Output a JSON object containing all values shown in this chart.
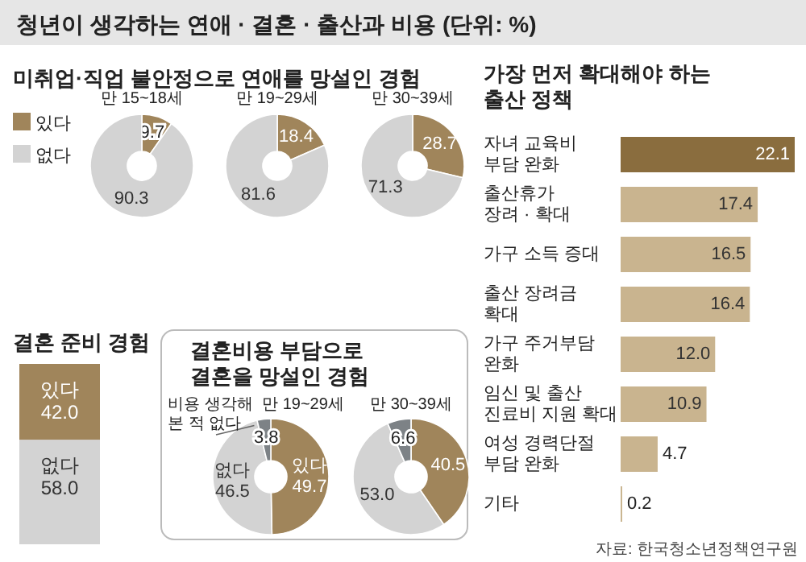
{
  "chart_data": [
    {
      "type": "other",
      "title": "청년이 생각하는 연애 · 결혼 · 출산과 비용 (단위: %)"
    },
    {
      "type": "donut",
      "title": "미취업·직업 불안정으로 연애를 망설인 경험",
      "subtitle": "만 15~18세",
      "categories": [
        "있다",
        "없다"
      ],
      "values": [
        9.7,
        90.3
      ],
      "value_labels": [
        "9.7",
        "90.3"
      ],
      "colors": [
        "#a0855b",
        "#d3d3d3"
      ],
      "legend": "left"
    },
    {
      "type": "donut",
      "subtitle": "만 19~29세",
      "categories": [
        null,
        null
      ],
      "values": [
        18.4,
        81.6
      ],
      "value_labels": [
        "18.4",
        "81.6"
      ],
      "colors": [
        "#a0855b",
        "#d3d3d3"
      ]
    },
    {
      "type": "donut",
      "subtitle": "만 30~39세",
      "categories": [
        null,
        null
      ],
      "values": [
        28.7,
        71.3
      ],
      "value_labels": [
        "28.7",
        "71.3"
      ],
      "colors": [
        "#a0855b",
        "#d3d3d3"
      ]
    },
    {
      "type": "bar",
      "title": "결혼 준비 경험",
      "categories": [
        null
      ],
      "stacked": true,
      "series": [
        {
          "name": "없다",
          "color": "#d3d3d3",
          "values": [
            58.0
          ],
          "value_labels": [
            "58.0"
          ]
        },
        {
          "name": "있다",
          "color": "#a0855b",
          "values": [
            42.0
          ],
          "value_labels": [
            "42.0"
          ]
        }
      ]
    },
    {
      "type": "donut",
      "title": "결혼비용 부담으로\n결혼을 망설인 경험",
      "subtitle": "만 19~29세",
      "categories": [
        "있다",
        "없다",
        "비용 생각해\n본 적 없다"
      ],
      "values": [
        49.7,
        46.5,
        3.8
      ],
      "value_labels": [
        "49.7",
        "46.5",
        "3.8"
      ],
      "colors": [
        "#a0855b",
        "#d3d3d3",
        "#7d8286"
      ]
    },
    {
      "type": "donut",
      "subtitle": "만 30~39세",
      "categories": [
        null,
        null,
        null
      ],
      "values": [
        40.5,
        53.0,
        6.6
      ],
      "value_labels": [
        "40.5",
        "53.0",
        "6.6"
      ],
      "colors": [
        "#a0855b",
        "#d3d3d3",
        "#7d8286"
      ]
    },
    {
      "type": "bar",
      "orientation": "horizontal",
      "title": "가장 먼저 확대해야 하는\n출산 정책",
      "categories": [
        "자녀 교육비\n부담 완화",
        "출산휴가\n장려 · 확대",
        "가구 소득 증대",
        "출산 장려금\n확대",
        "가구 주거부담\n완화",
        "임신 및 출산\n진료비 지원 확대",
        "여성 경력단절\n부담 완화",
        "기타"
      ],
      "values": [
        22.1,
        17.4,
        16.5,
        16.4,
        12.0,
        10.9,
        4.7,
        0.2
      ],
      "value_labels": [
        "22.1",
        "17.4",
        "16.5",
        "16.4",
        "12.0",
        "10.9",
        "4.7",
        "0.2"
      ],
      "colors": [
        "#8a6d3e",
        "#c9b48f",
        "#c9b48f",
        "#c9b48f",
        "#c9b48f",
        "#c9b48f",
        "#c9b48f",
        "#c9b48f"
      ],
      "annotations": [
        "자료: 한국청소년정책연구원"
      ]
    }
  ]
}
